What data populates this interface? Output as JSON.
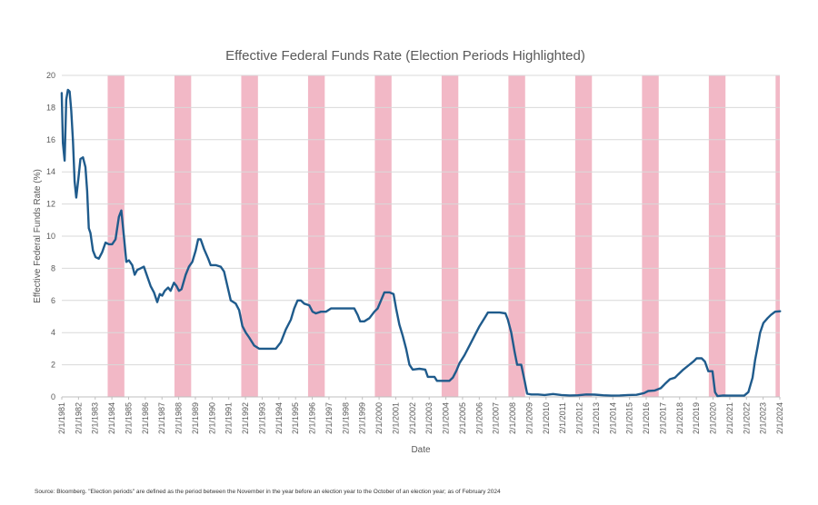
{
  "chart_data": {
    "type": "line",
    "title": "Effective Federal Funds Rate (Election Periods Highlighted)",
    "xlabel": "Date",
    "ylabel": "Effective Federal Funds Rate (%)",
    "ylim": [
      0,
      20
    ],
    "yticks": [
      0,
      2,
      4,
      6,
      8,
      10,
      12,
      14,
      16,
      18,
      20
    ],
    "xlim": [
      1981.083,
      2024.083
    ],
    "xtick_labels": [
      "2/1/1981",
      "2/1/1982",
      "2/1/1983",
      "2/1/1984",
      "2/1/1985",
      "2/1/1986",
      "2/1/1987",
      "2/1/1988",
      "2/1/1989",
      "2/1/1990",
      "2/1/1991",
      "2/1/1992",
      "2/1/1993",
      "2/1/1994",
      "2/1/1995",
      "2/1/1996",
      "2/1/1997",
      "2/1/1998",
      "2/1/1999",
      "2/1/2000",
      "2/1/2001",
      "2/1/2002",
      "2/1/2003",
      "2/1/2004",
      "2/1/2005",
      "2/1/2006",
      "2/1/2007",
      "2/1/2008",
      "2/1/2009",
      "2/1/2010",
      "2/1/2011",
      "2/1/2012",
      "2/1/2013",
      "2/1/2014",
      "2/1/2015",
      "2/1/2016",
      "2/1/2017",
      "2/1/2018",
      "2/1/2019",
      "2/1/2020",
      "2/1/2021",
      "2/1/2022",
      "2/1/2023",
      "2/1/2024"
    ],
    "highlight_color": "#f2b8c6",
    "line_color": "#1f5b8c",
    "election_periods": [
      [
        1983.83,
        1984.83
      ],
      [
        1987.83,
        1988.83
      ],
      [
        1991.83,
        1992.83
      ],
      [
        1995.83,
        1996.83
      ],
      [
        1999.83,
        2000.83
      ],
      [
        2003.83,
        2004.83
      ],
      [
        2007.83,
        2008.83
      ],
      [
        2011.83,
        2012.83
      ],
      [
        2015.83,
        2016.83
      ],
      [
        2019.83,
        2020.83
      ],
      [
        2023.83,
        2024.2
      ]
    ],
    "series": [
      {
        "name": "Effective Federal Funds Rate",
        "points": [
          [
            1981.08,
            18.9
          ],
          [
            1981.15,
            15.8
          ],
          [
            1981.25,
            14.7
          ],
          [
            1981.35,
            18.5
          ],
          [
            1981.45,
            19.1
          ],
          [
            1981.55,
            19.0
          ],
          [
            1981.65,
            17.8
          ],
          [
            1981.75,
            15.9
          ],
          [
            1981.85,
            13.4
          ],
          [
            1981.95,
            12.4
          ],
          [
            1982.08,
            13.6
          ],
          [
            1982.2,
            14.8
          ],
          [
            1982.35,
            14.9
          ],
          [
            1982.5,
            14.3
          ],
          [
            1982.6,
            12.8
          ],
          [
            1982.7,
            10.5
          ],
          [
            1982.8,
            10.2
          ],
          [
            1982.95,
            9.1
          ],
          [
            1983.1,
            8.7
          ],
          [
            1983.3,
            8.6
          ],
          [
            1983.5,
            9.0
          ],
          [
            1983.7,
            9.6
          ],
          [
            1983.9,
            9.5
          ],
          [
            1984.1,
            9.5
          ],
          [
            1984.3,
            9.8
          ],
          [
            1984.5,
            11.2
          ],
          [
            1984.65,
            11.6
          ],
          [
            1984.8,
            10.0
          ],
          [
            1984.95,
            8.4
          ],
          [
            1985.1,
            8.5
          ],
          [
            1985.3,
            8.2
          ],
          [
            1985.45,
            7.6
          ],
          [
            1985.6,
            7.9
          ],
          [
            1985.8,
            8.0
          ],
          [
            1986.0,
            8.1
          ],
          [
            1986.2,
            7.5
          ],
          [
            1986.4,
            6.9
          ],
          [
            1986.6,
            6.5
          ],
          [
            1986.8,
            5.9
          ],
          [
            1986.95,
            6.4
          ],
          [
            1987.1,
            6.3
          ],
          [
            1987.25,
            6.6
          ],
          [
            1987.45,
            6.8
          ],
          [
            1987.6,
            6.6
          ],
          [
            1987.8,
            7.1
          ],
          [
            1987.95,
            6.9
          ],
          [
            1988.1,
            6.6
          ],
          [
            1988.25,
            6.7
          ],
          [
            1988.5,
            7.6
          ],
          [
            1988.7,
            8.1
          ],
          [
            1988.9,
            8.4
          ],
          [
            1989.1,
            9.1
          ],
          [
            1989.25,
            9.8
          ],
          [
            1989.4,
            9.8
          ],
          [
            1989.6,
            9.2
          ],
          [
            1989.85,
            8.6
          ],
          [
            1990.0,
            8.2
          ],
          [
            1990.3,
            8.2
          ],
          [
            1990.6,
            8.1
          ],
          [
            1990.8,
            7.8
          ],
          [
            1991.0,
            6.9
          ],
          [
            1991.2,
            6.0
          ],
          [
            1991.5,
            5.8
          ],
          [
            1991.7,
            5.4
          ],
          [
            1991.9,
            4.4
          ],
          [
            1992.1,
            4.0
          ],
          [
            1992.3,
            3.7
          ],
          [
            1992.6,
            3.2
          ],
          [
            1992.9,
            3.0
          ],
          [
            1993.3,
            3.0
          ],
          [
            1993.6,
            3.0
          ],
          [
            1993.9,
            3.0
          ],
          [
            1994.2,
            3.4
          ],
          [
            1994.5,
            4.2
          ],
          [
            1994.8,
            4.8
          ],
          [
            1995.0,
            5.5
          ],
          [
            1995.2,
            6.0
          ],
          [
            1995.4,
            6.0
          ],
          [
            1995.6,
            5.8
          ],
          [
            1995.9,
            5.7
          ],
          [
            1996.1,
            5.3
          ],
          [
            1996.3,
            5.2
          ],
          [
            1996.6,
            5.3
          ],
          [
            1996.9,
            5.3
          ],
          [
            1997.2,
            5.5
          ],
          [
            1997.5,
            5.5
          ],
          [
            1997.8,
            5.5
          ],
          [
            1998.2,
            5.5
          ],
          [
            1998.6,
            5.5
          ],
          [
            1998.8,
            5.1
          ],
          [
            1998.95,
            4.7
          ],
          [
            1999.2,
            4.7
          ],
          [
            1999.5,
            4.9
          ],
          [
            1999.8,
            5.3
          ],
          [
            2000.0,
            5.5
          ],
          [
            2000.2,
            6.0
          ],
          [
            2000.4,
            6.5
          ],
          [
            2000.7,
            6.5
          ],
          [
            2000.95,
            6.4
          ],
          [
            2001.1,
            5.5
          ],
          [
            2001.3,
            4.5
          ],
          [
            2001.5,
            3.8
          ],
          [
            2001.7,
            3.0
          ],
          [
            2001.9,
            2.0
          ],
          [
            2002.1,
            1.7
          ],
          [
            2002.5,
            1.75
          ],
          [
            2002.85,
            1.7
          ],
          [
            2003.0,
            1.25
          ],
          [
            2003.4,
            1.25
          ],
          [
            2003.55,
            1.0
          ],
          [
            2003.9,
            1.0
          ],
          [
            2004.3,
            1.0
          ],
          [
            2004.5,
            1.2
          ],
          [
            2004.7,
            1.6
          ],
          [
            2004.9,
            2.1
          ],
          [
            2005.2,
            2.6
          ],
          [
            2005.5,
            3.2
          ],
          [
            2005.8,
            3.8
          ],
          [
            2006.1,
            4.4
          ],
          [
            2006.4,
            4.9
          ],
          [
            2006.6,
            5.25
          ],
          [
            2006.9,
            5.25
          ],
          [
            2007.3,
            5.25
          ],
          [
            2007.65,
            5.2
          ],
          [
            2007.8,
            4.8
          ],
          [
            2008.0,
            4.0
          ],
          [
            2008.2,
            2.8
          ],
          [
            2008.35,
            2.0
          ],
          [
            2008.6,
            2.0
          ],
          [
            2008.8,
            1.0
          ],
          [
            2008.95,
            0.2
          ],
          [
            2009.2,
            0.15
          ],
          [
            2009.6,
            0.15
          ],
          [
            2010.0,
            0.12
          ],
          [
            2010.5,
            0.18
          ],
          [
            2011.0,
            0.12
          ],
          [
            2011.5,
            0.09
          ],
          [
            2012.0,
            0.1
          ],
          [
            2012.5,
            0.15
          ],
          [
            2013.0,
            0.14
          ],
          [
            2013.5,
            0.1
          ],
          [
            2014.0,
            0.08
          ],
          [
            2014.5,
            0.09
          ],
          [
            2015.0,
            0.12
          ],
          [
            2015.5,
            0.13
          ],
          [
            2015.95,
            0.24
          ],
          [
            2016.2,
            0.37
          ],
          [
            2016.6,
            0.4
          ],
          [
            2016.95,
            0.54
          ],
          [
            2017.2,
            0.8
          ],
          [
            2017.5,
            1.1
          ],
          [
            2017.8,
            1.2
          ],
          [
            2018.0,
            1.4
          ],
          [
            2018.3,
            1.7
          ],
          [
            2018.6,
            1.95
          ],
          [
            2018.9,
            2.2
          ],
          [
            2019.1,
            2.4
          ],
          [
            2019.4,
            2.4
          ],
          [
            2019.6,
            2.2
          ],
          [
            2019.8,
            1.6
          ],
          [
            2020.05,
            1.6
          ],
          [
            2020.2,
            0.3
          ],
          [
            2020.35,
            0.05
          ],
          [
            2020.7,
            0.09
          ],
          [
            2021.0,
            0.08
          ],
          [
            2021.5,
            0.08
          ],
          [
            2021.95,
            0.08
          ],
          [
            2022.2,
            0.3
          ],
          [
            2022.45,
            1.2
          ],
          [
            2022.6,
            2.3
          ],
          [
            2022.75,
            3.1
          ],
          [
            2022.9,
            4.0
          ],
          [
            2023.1,
            4.6
          ],
          [
            2023.35,
            4.9
          ],
          [
            2023.55,
            5.1
          ],
          [
            2023.8,
            5.3
          ],
          [
            2024.1,
            5.33
          ]
        ]
      }
    ]
  },
  "source_note": "Source: Bloomberg. \"Election periods\" are defined as the period between the November in the year before an election year to the October of an election year; as of February 2024"
}
